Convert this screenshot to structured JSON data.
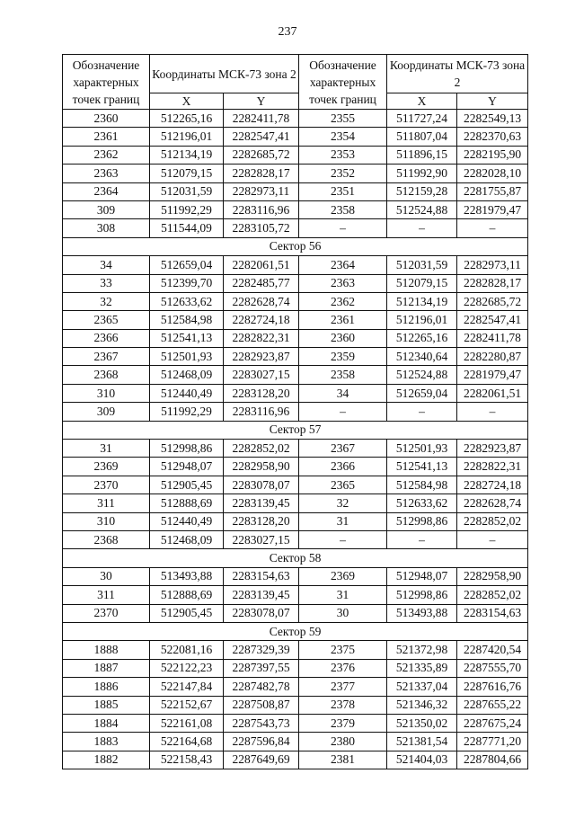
{
  "page_number": "237",
  "table": {
    "header": [
      "Обозначение характерных точек границ",
      "Координаты МСК-73 зона 2",
      "X",
      "Y",
      "Обозначение характерных точек границ",
      "Координаты МСК-73 зона 2",
      "X",
      "Y"
    ],
    "rows": [
      [
        "2360",
        "512265,16",
        "2282411,78",
        "2355",
        "511727,24",
        "2282549,13"
      ],
      [
        "2361",
        "512196,01",
        "2282547,41",
        "2354",
        "511807,04",
        "2282370,63"
      ],
      [
        "2362",
        "512134,19",
        "2282685,72",
        "2353",
        "511896,15",
        "2282195,90"
      ],
      [
        "2363",
        "512079,15",
        "2282828,17",
        "2352",
        "511992,90",
        "2282028,10"
      ],
      [
        "2364",
        "512031,59",
        "2282973,11",
        "2351",
        "512159,28",
        "2281755,87"
      ],
      [
        "309",
        "511992,29",
        "2283116,96",
        "2358",
        "512524,88",
        "2281979,47"
      ],
      [
        "308",
        "511544,09",
        "2283105,72",
        "–",
        "–",
        "–"
      ],
      {
        "sector": "Сектор 56"
      },
      [
        "34",
        "512659,04",
        "2282061,51",
        "2364",
        "512031,59",
        "2282973,11"
      ],
      [
        "33",
        "512399,70",
        "2282485,77",
        "2363",
        "512079,15",
        "2282828,17"
      ],
      [
        "32",
        "512633,62",
        "2282628,74",
        "2362",
        "512134,19",
        "2282685,72"
      ],
      [
        "2365",
        "512584,98",
        "2282724,18",
        "2361",
        "512196,01",
        "2282547,41"
      ],
      [
        "2366",
        "512541,13",
        "2282822,31",
        "2360",
        "512265,16",
        "2282411,78"
      ],
      [
        "2367",
        "512501,93",
        "2282923,87",
        "2359",
        "512340,64",
        "2282280,87"
      ],
      [
        "2368",
        "512468,09",
        "2283027,15",
        "2358",
        "512524,88",
        "2281979,47"
      ],
      [
        "310",
        "512440,49",
        "2283128,20",
        "34",
        "512659,04",
        "2282061,51"
      ],
      [
        "309",
        "511992,29",
        "2283116,96",
        "–",
        "–",
        "–"
      ],
      {
        "sector": "Сектор 57"
      },
      [
        "31",
        "512998,86",
        "2282852,02",
        "2367",
        "512501,93",
        "2282923,87"
      ],
      [
        "2369",
        "512948,07",
        "2282958,90",
        "2366",
        "512541,13",
        "2282822,31"
      ],
      [
        "2370",
        "512905,45",
        "2283078,07",
        "2365",
        "512584,98",
        "2282724,18"
      ],
      [
        "311",
        "512888,69",
        "2283139,45",
        "32",
        "512633,62",
        "2282628,74"
      ],
      [
        "310",
        "512440,49",
        "2283128,20",
        "31",
        "512998,86",
        "2282852,02"
      ],
      [
        "2368",
        "512468,09",
        "2283027,15",
        "–",
        "–",
        "–"
      ],
      {
        "sector": "Сектор 58"
      },
      [
        "30",
        "513493,88",
        "2283154,63",
        "2369",
        "512948,07",
        "2282958,90"
      ],
      [
        "311",
        "512888,69",
        "2283139,45",
        "31",
        "512998,86",
        "2282852,02"
      ],
      [
        "2370",
        "512905,45",
        "2283078,07",
        "30",
        "513493,88",
        "2283154,63"
      ],
      {
        "sector": "Сектор 59"
      },
      [
        "1888",
        "522081,16",
        "2287329,39",
        "2375",
        "521372,98",
        "2287420,54"
      ],
      [
        "1887",
        "522122,23",
        "2287397,55",
        "2376",
        "521335,89",
        "2287555,70"
      ],
      [
        "1886",
        "522147,84",
        "2287482,78",
        "2377",
        "521337,04",
        "2287616,76"
      ],
      [
        "1885",
        "522152,67",
        "2287508,87",
        "2378",
        "521346,32",
        "2287655,22"
      ],
      [
        "1884",
        "522161,08",
        "2287543,73",
        "2379",
        "521350,02",
        "2287675,24"
      ],
      [
        "1883",
        "522164,68",
        "2287596,84",
        "2380",
        "521381,54",
        "2287771,20"
      ],
      [
        "1882",
        "522158,43",
        "2287649,69",
        "2381",
        "521404,03",
        "2287804,66"
      ]
    ]
  }
}
